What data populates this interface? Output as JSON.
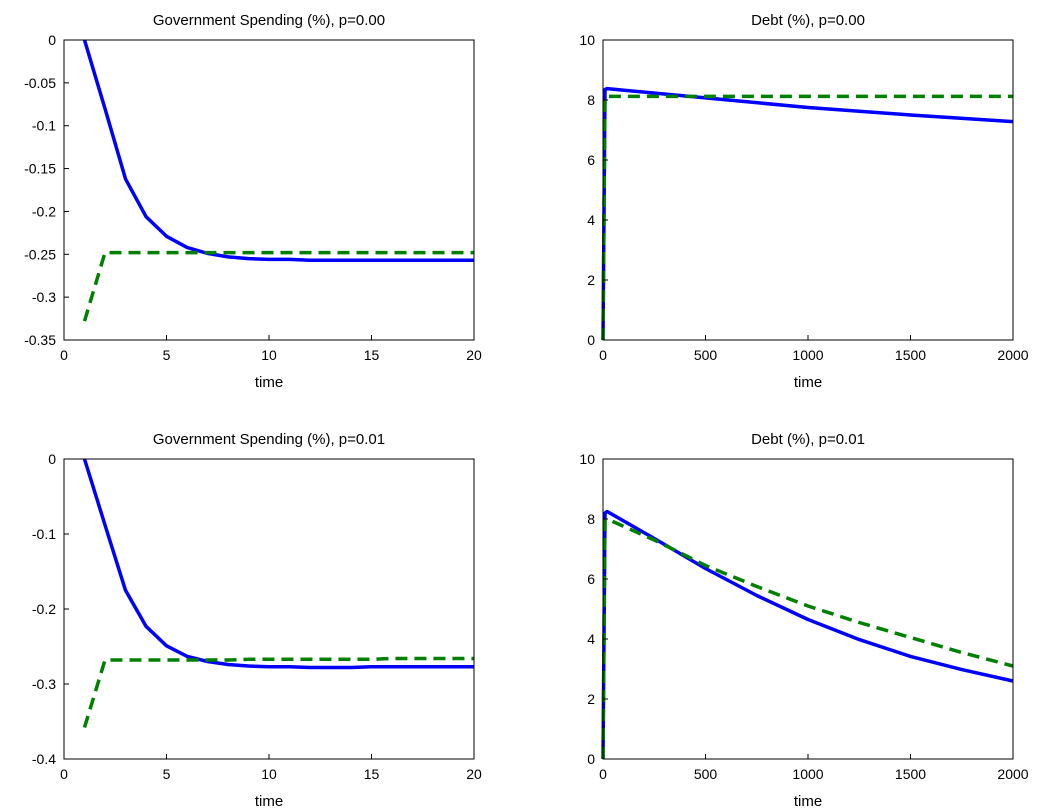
{
  "chart_data": [
    {
      "type": "line",
      "title": "Government Spending (%), p=0.00",
      "xlabel": "time",
      "ylabel": "",
      "xlim": [
        0,
        20
      ],
      "ylim": [
        -0.35,
        0
      ],
      "xticks": [
        0,
        5,
        10,
        15,
        20
      ],
      "xticklabels": [
        "0",
        "5",
        "10",
        "15",
        "20"
      ],
      "yticks": [
        0,
        -0.05,
        -0.1,
        -0.15,
        -0.2,
        -0.25,
        -0.3,
        -0.35
      ],
      "yticklabels": [
        "0",
        "-0.05",
        "-0.1",
        "-0.15",
        "-0.2",
        "-0.25",
        "-0.3",
        "-0.35"
      ],
      "grid": false,
      "series": [
        {
          "style": "solid",
          "color": "#0000ff",
          "x": [
            1,
            2,
            3,
            4,
            5,
            6,
            7,
            8,
            9,
            10,
            11,
            12,
            13,
            14,
            15,
            16,
            17,
            18,
            19,
            20
          ],
          "y": [
            0,
            -0.08,
            -0.162,
            -0.206,
            -0.229,
            -0.242,
            -0.249,
            -0.253,
            -0.255,
            -0.256,
            -0.256,
            -0.257,
            -0.257,
            -0.257,
            -0.257,
            -0.257,
            -0.257,
            -0.257,
            -0.257,
            -0.257
          ]
        },
        {
          "style": "dashed",
          "color": "#008000",
          "x": [
            1,
            2,
            3,
            4,
            5,
            6,
            7,
            8,
            9,
            10,
            11,
            12,
            13,
            14,
            15,
            16,
            17,
            18,
            19,
            20
          ],
          "y": [
            -0.328,
            -0.248,
            -0.248,
            -0.248,
            -0.248,
            -0.248,
            -0.248,
            -0.248,
            -0.248,
            -0.248,
            -0.248,
            -0.248,
            -0.248,
            -0.248,
            -0.248,
            -0.248,
            -0.248,
            -0.248,
            -0.248,
            -0.248
          ]
        }
      ]
    },
    {
      "type": "line",
      "title": "Debt (%), p=0.00",
      "xlabel": "time",
      "ylabel": "",
      "xlim": [
        0,
        2000
      ],
      "ylim": [
        0,
        10
      ],
      "xticks": [
        0,
        500,
        1000,
        1500,
        2000
      ],
      "xticklabels": [
        "0",
        "500",
        "1000",
        "1500",
        "2000"
      ],
      "yticks": [
        0,
        2,
        4,
        6,
        8,
        10
      ],
      "yticklabels": [
        "0",
        "2",
        "4",
        "6",
        "8",
        "10"
      ],
      "grid": false,
      "series": [
        {
          "style": "solid",
          "color": "#0000ff",
          "x": [
            0,
            10,
            20,
            500,
            1000,
            1500,
            2000
          ],
          "y": [
            0,
            8.35,
            8.38,
            8.07,
            7.75,
            7.5,
            7.28
          ]
        },
        {
          "style": "dashed",
          "color": "#008000",
          "x": [
            0,
            10,
            20,
            500,
            1000,
            1500,
            2000
          ],
          "y": [
            0,
            8.1,
            8.12,
            8.12,
            8.12,
            8.12,
            8.12
          ]
        }
      ]
    },
    {
      "type": "line",
      "title": "Government Spending (%), p=0.01",
      "xlabel": "time",
      "ylabel": "",
      "xlim": [
        0,
        20
      ],
      "ylim": [
        -0.4,
        0
      ],
      "xticks": [
        0,
        5,
        10,
        15,
        20
      ],
      "xticklabels": [
        "0",
        "5",
        "10",
        "15",
        "20"
      ],
      "yticks": [
        0,
        -0.1,
        -0.2,
        -0.3,
        -0.4
      ],
      "yticklabels": [
        "0",
        "-0.1",
        "-0.2",
        "-0.3",
        "-0.4"
      ],
      "grid": false,
      "series": [
        {
          "style": "solid",
          "color": "#0000ff",
          "x": [
            1,
            2,
            3,
            4,
            5,
            6,
            7,
            8,
            9,
            10,
            11,
            12,
            13,
            14,
            15,
            16,
            17,
            18,
            19,
            20
          ],
          "y": [
            0,
            -0.088,
            -0.175,
            -0.223,
            -0.249,
            -0.263,
            -0.27,
            -0.274,
            -0.276,
            -0.277,
            -0.277,
            -0.278,
            -0.278,
            -0.278,
            -0.277,
            -0.277,
            -0.277,
            -0.277,
            -0.277,
            -0.277
          ]
        },
        {
          "style": "dashed",
          "color": "#008000",
          "x": [
            1,
            2,
            3,
            4,
            5,
            6,
            7,
            8,
            9,
            10,
            11,
            12,
            13,
            14,
            15,
            16,
            17,
            18,
            19,
            20
          ],
          "y": [
            -0.358,
            -0.268,
            -0.268,
            -0.268,
            -0.268,
            -0.268,
            -0.268,
            -0.268,
            -0.267,
            -0.267,
            -0.267,
            -0.267,
            -0.267,
            -0.267,
            -0.267,
            -0.266,
            -0.266,
            -0.266,
            -0.266,
            -0.266
          ]
        }
      ]
    },
    {
      "type": "line",
      "title": "Debt (%), p=0.01",
      "xlabel": "time",
      "ylabel": "",
      "xlim": [
        0,
        2000
      ],
      "ylim": [
        0,
        10
      ],
      "xticks": [
        0,
        500,
        1000,
        1500,
        2000
      ],
      "xticklabels": [
        "0",
        "500",
        "1000",
        "1500",
        "2000"
      ],
      "yticks": [
        0,
        2,
        4,
        6,
        8,
        10
      ],
      "yticklabels": [
        "0",
        "2",
        "4",
        "6",
        "8",
        "10"
      ],
      "grid": false,
      "series": [
        {
          "style": "solid",
          "color": "#0000ff",
          "x": [
            0,
            10,
            20,
            250,
            500,
            750,
            1000,
            1250,
            1500,
            1750,
            2000
          ],
          "y": [
            0,
            8.2,
            8.25,
            7.35,
            6.35,
            5.45,
            4.65,
            3.98,
            3.42,
            2.98,
            2.6
          ]
        },
        {
          "style": "dashed",
          "color": "#008000",
          "x": [
            0,
            10,
            20,
            250,
            500,
            750,
            1000,
            1250,
            1500,
            1750,
            2000
          ],
          "y": [
            0,
            7.95,
            8.0,
            7.3,
            6.45,
            5.75,
            5.1,
            4.55,
            4.05,
            3.55,
            3.1
          ]
        }
      ]
    }
  ]
}
